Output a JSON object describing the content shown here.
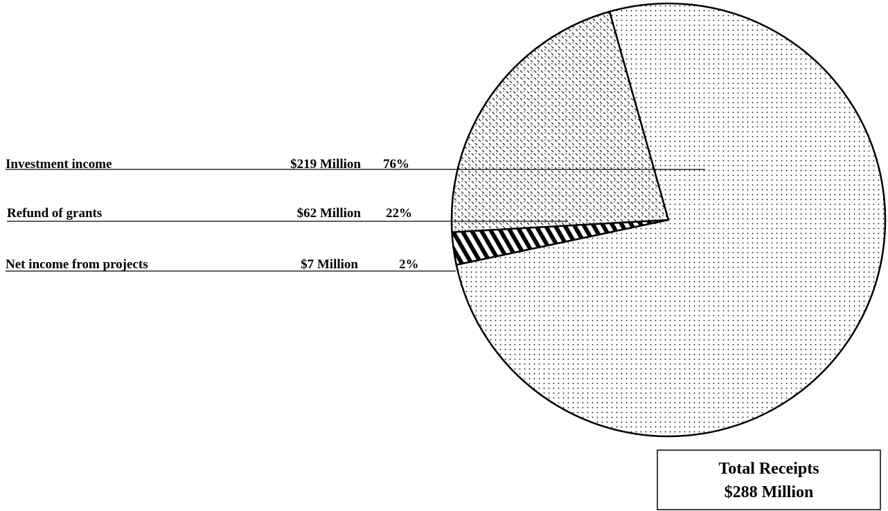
{
  "chart_data": {
    "type": "pie",
    "title": "",
    "slices": [
      {
        "label": "Investment income",
        "amount": "$219 Million",
        "percent": "76%",
        "value": 219,
        "pattern": "dots"
      },
      {
        "label": "Refund of grants",
        "amount": "$62 Million",
        "percent": "22%",
        "value": 62,
        "pattern": "light-diagonal"
      },
      {
        "label": "Net income from projects",
        "amount": "$7 Million",
        "percent": "2%",
        "value": 7,
        "pattern": "bold-diagonal"
      }
    ],
    "total": {
      "line1": "Total Receipts",
      "line2": "$288 Million"
    }
  }
}
